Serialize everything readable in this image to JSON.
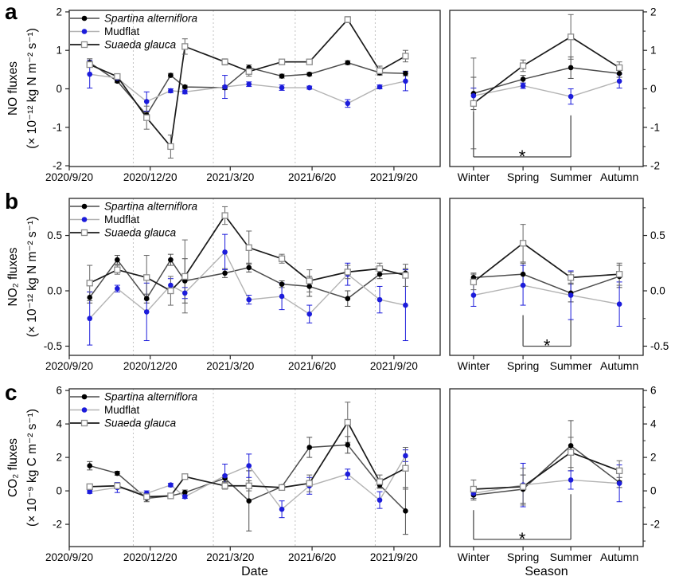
{
  "panel_letters": [
    "a",
    "b",
    "c"
  ],
  "x_axis_label": "Date",
  "season_axis_label": "Season",
  "legend_names": [
    "Spartina alterniflora",
    "Mudflat",
    "Suaeda glauca"
  ],
  "colors": {
    "spartina_line": "#4d4d4d",
    "spartina_marker": "#000000",
    "mudflat_line": "#b3b3b3",
    "mudflat_marker": "#1c1cdb",
    "suaeda_line": "#1a1a1a",
    "suaeda_marker_stroke": "#8c8c8c",
    "error_gray": "#666666",
    "season_divider": "#c4c4c4",
    "axis": "#262626",
    "bracket": "#4d4d4d"
  },
  "chart_data": [
    {
      "id": "a_timeseries",
      "type": "line",
      "ylabel": [
        "NO fluxes",
        "(× 10⁻¹² kg N m⁻² s⁻¹)"
      ],
      "ylim": [
        -2.02,
        2.04
      ],
      "y_ticks": [
        2,
        1,
        0,
        -1,
        -2
      ],
      "y_tick_labels": [
        "2",
        "1",
        "0",
        "-1",
        "-2"
      ],
      "y_minor_step": 0.5,
      "x_tick_labels": [
        "2020/9/20",
        "2020/12/20",
        "2021/3/20",
        "2021/6/20",
        "2021/9/20"
      ],
      "x_tick_days": [
        0,
        91,
        181,
        273,
        365
      ],
      "xlim_days": [
        0,
        417
      ],
      "season_divider_days": [
        72,
        162,
        254,
        344
      ],
      "x_dates": [
        "2020/10/13",
        "2020/11/13",
        "2020/12/16",
        "2021/1/12",
        "2021/1/28",
        "2021/3/14",
        "2021/4/10",
        "2021/5/17",
        "2021/6/17",
        "2021/7/30",
        "2021/9/4",
        "2021/10/3"
      ],
      "x_days": [
        23,
        54,
        87,
        114,
        130,
        175,
        202,
        239,
        270,
        313,
        349,
        378
      ],
      "show_legend": true,
      "series": [
        {
          "key": "spartina",
          "name": "Spartina alterniflora",
          "values": [
            0.68,
            0.2,
            -0.68,
            0.35,
            0.05,
            0.03,
            0.55,
            0.33,
            0.38,
            0.68,
            0.42,
            0.4
          ],
          "errors": [
            0.1,
            0.04,
            0.08,
            0.05,
            0.04,
            0.05,
            0.07,
            0.05,
            0.04,
            0.05,
            0.05,
            0.06
          ]
        },
        {
          "key": "mudflat",
          "name": "Mudflat",
          "values": [
            0.38,
            0.28,
            -0.33,
            -0.05,
            -0.08,
            0.05,
            0.12,
            0.03,
            0.03,
            -0.38,
            0.05,
            0.2
          ],
          "errors": [
            0.36,
            0.05,
            0.25,
            0.05,
            0.05,
            0.3,
            0.06,
            0.07,
            0.04,
            0.1,
            0.05,
            0.25
          ]
        },
        {
          "key": "suaeda",
          "name": "Suaeda glauca",
          "values": [
            0.63,
            0.32,
            -0.75,
            -1.5,
            1.1,
            0.7,
            0.45,
            0.7,
            0.7,
            1.8,
            0.47,
            0.85
          ],
          "errors": [
            0.05,
            0.06,
            0.3,
            0.3,
            0.2,
            0.08,
            0.12,
            0.05,
            0.05,
            0.08,
            0.12,
            0.15
          ]
        }
      ]
    },
    {
      "id": "a_seasonal",
      "type": "line",
      "categories": [
        "Winter",
        "Spring",
        "Summer",
        "Autumn"
      ],
      "ylim": [
        -2.02,
        2.04
      ],
      "y_ticks": [
        2,
        1,
        0,
        -1,
        -2
      ],
      "y_tick_labels": [
        "2",
        "1",
        "0",
        "-1",
        "-2"
      ],
      "y_minor_step": 0.5,
      "series": [
        {
          "key": "spartina",
          "name": "Spartina alterniflora",
          "values": [
            -0.12,
            0.25,
            0.55,
            0.4
          ],
          "errors": [
            0.42,
            0.1,
            0.28,
            0.1
          ]
        },
        {
          "key": "mudflat",
          "name": "Mudflat",
          "values": [
            -0.18,
            0.08,
            -0.2,
            0.2
          ],
          "errors": [
            0.2,
            0.07,
            0.2,
            0.18
          ]
        },
        {
          "key": "suaeda",
          "name": "Suaeda glauca",
          "values": [
            -0.38,
            0.6,
            1.35,
            0.55
          ],
          "errors": [
            1.18,
            0.15,
            0.58,
            0.15
          ]
        }
      ],
      "significance": {
        "from": 0,
        "to": 2,
        "bar": -1.77,
        "from_start": -0.59,
        "to_start": -0.69,
        "label": "*"
      }
    },
    {
      "id": "b_timeseries",
      "type": "line",
      "ylabel": [
        "NO₂ fluxes",
        "(× 10⁻¹² kg N m⁻² s⁻¹)"
      ],
      "ylim": [
        -0.583,
        0.835
      ],
      "y_ticks": [
        0.5,
        0.0,
        -0.5
      ],
      "y_tick_labels": [
        "0.5",
        "0.0",
        "-0.5"
      ],
      "y_minor_step": 0.25,
      "x_tick_labels": [
        "2020/9/20",
        "2020/12/20",
        "2021/3/20",
        "2021/6/20",
        "2021/9/20"
      ],
      "x_tick_days": [
        0,
        91,
        181,
        273,
        365
      ],
      "xlim_days": [
        0,
        417
      ],
      "season_divider_days": [
        72,
        162,
        254,
        344
      ],
      "x_dates": [
        "2020/10/13",
        "2020/11/13",
        "2020/12/16",
        "2021/1/12",
        "2021/1/28",
        "2021/3/14",
        "2021/4/10",
        "2021/5/17",
        "2021/6/17",
        "2021/7/30",
        "2021/9/4",
        "2021/10/3"
      ],
      "x_days": [
        23,
        54,
        87,
        114,
        130,
        175,
        202,
        239,
        270,
        313,
        349,
        378
      ],
      "show_legend": true,
      "series": [
        {
          "key": "spartina",
          "name": "Spartina alterniflora",
          "values": [
            -0.06,
            0.28,
            -0.07,
            0.28,
            0.09,
            0.16,
            0.21,
            0.06,
            0.04,
            -0.07,
            0.15,
            0.16
          ],
          "errors": [
            0.05,
            0.04,
            0.04,
            0.05,
            0.2,
            0.04,
            0.04,
            0.03,
            0.09,
            0.07,
            0.04,
            0.04
          ]
        },
        {
          "key": "mudflat",
          "name": "Mudflat",
          "values": [
            -0.25,
            0.02,
            -0.19,
            0.05,
            -0.02,
            0.35,
            -0.08,
            -0.05,
            -0.21,
            0.15,
            -0.08,
            -0.13
          ],
          "errors": [
            0.24,
            0.03,
            0.26,
            0.06,
            0.05,
            0.16,
            0.04,
            0.12,
            0.08,
            0.1,
            0.12,
            0.32
          ]
        },
        {
          "key": "suaeda",
          "name": "Suaeda glauca",
          "values": [
            0.07,
            0.19,
            0.12,
            0.0,
            0.13,
            0.68,
            0.39,
            0.29,
            0.09,
            0.17,
            0.2,
            0.14
          ],
          "errors": [
            0.16,
            0.04,
            0.2,
            0.13,
            0.33,
            0.08,
            0.15,
            0.04,
            0.1,
            0.06,
            0.05,
            0.1
          ]
        }
      ]
    },
    {
      "id": "b_seasonal",
      "type": "line",
      "categories": [
        "Winter",
        "Spring",
        "Summer",
        "Autumn"
      ],
      "ylim": [
        -0.583,
        0.835
      ],
      "y_ticks": [
        0.5,
        0.0,
        -0.5
      ],
      "y_tick_labels": [
        "0.5",
        "0.0",
        "-0.5"
      ],
      "y_minor_step": 0.25,
      "series": [
        {
          "key": "spartina",
          "name": "Spartina alterniflora",
          "values": [
            0.12,
            0.15,
            -0.02,
            0.13
          ],
          "errors": [
            0.04,
            0.1,
            0.08,
            0.1
          ]
        },
        {
          "key": "mudflat",
          "name": "Mudflat",
          "values": [
            -0.04,
            0.05,
            -0.04,
            -0.12
          ],
          "errors": [
            0.1,
            0.18,
            0.22,
            0.2
          ]
        },
        {
          "key": "suaeda",
          "name": "Suaeda glauca",
          "values": [
            0.08,
            0.43,
            0.12,
            0.15
          ],
          "errors": [
            0.07,
            0.17,
            0.05,
            0.1
          ]
        }
      ],
      "significance": {
        "from": 1,
        "to": 2,
        "bar": -0.5,
        "from_start": -0.22,
        "to_start": -0.26,
        "label": "*"
      }
    },
    {
      "id": "c_timeseries",
      "type": "line",
      "ylabel": [
        "CO₂ fluxes",
        "(× 10⁻⁹ kg C m⁻² s⁻¹)"
      ],
      "ylim": [
        -3.33,
        6.1
      ],
      "y_ticks": [
        6,
        4,
        2,
        0,
        -2
      ],
      "y_tick_labels": [
        "6",
        "4",
        "2",
        "0",
        "-2"
      ],
      "y_minor_step": 1,
      "x_tick_labels": [
        "2020/9/20",
        "2020/12/20",
        "2021/3/20",
        "2021/6/20",
        "2021/9/20"
      ],
      "x_tick_days": [
        0,
        91,
        181,
        273,
        365
      ],
      "xlim_days": [
        0,
        417
      ],
      "season_divider_days": [
        72,
        162,
        254,
        344
      ],
      "x_dates": [
        "2020/10/13",
        "2020/11/13",
        "2020/12/16",
        "2021/1/12",
        "2021/1/28",
        "2021/3/14",
        "2021/4/10",
        "2021/5/17",
        "2021/6/17",
        "2021/7/30",
        "2021/9/4",
        "2021/10/3"
      ],
      "x_days": [
        23,
        54,
        87,
        114,
        130,
        175,
        202,
        239,
        270,
        313,
        349,
        378
      ],
      "show_legend": true,
      "series": [
        {
          "key": "spartina",
          "name": "Spartina alterniflora",
          "values": [
            1.5,
            1.05,
            -0.45,
            -0.3,
            -0.1,
            0.75,
            -0.6,
            0.25,
            2.6,
            2.75,
            0.35,
            -1.2
          ],
          "errors": [
            0.25,
            0.12,
            0.2,
            0.1,
            0.15,
            0.2,
            1.8,
            0.1,
            0.6,
            0.5,
            0.15,
            1.4
          ]
        },
        {
          "key": "mudflat",
          "name": "Mudflat",
          "values": [
            -0.05,
            0.2,
            -0.15,
            0.35,
            -0.35,
            0.9,
            1.5,
            -1.1,
            0.3,
            1.0,
            -0.55,
            2.1
          ],
          "errors": [
            0.1,
            0.3,
            0.15,
            0.1,
            0.1,
            0.7,
            0.7,
            0.5,
            0.5,
            0.3,
            0.5,
            0.35
          ]
        },
        {
          "key": "suaeda",
          "name": "Suaeda glauca",
          "values": [
            0.25,
            0.3,
            -0.35,
            -0.3,
            0.85,
            0.3,
            0.3,
            0.2,
            0.45,
            4.1,
            0.55,
            1.35
          ],
          "errors": [
            0.1,
            0.1,
            0.15,
            0.1,
            0.15,
            0.2,
            0.3,
            0.1,
            0.5,
            1.2,
            0.4,
            1.25
          ]
        }
      ]
    },
    {
      "id": "c_seasonal",
      "type": "line",
      "categories": [
        "Winter",
        "Spring",
        "Summer",
        "Autumn"
      ],
      "ylim": [
        -3.33,
        6.1
      ],
      "y_ticks": [
        6,
        4,
        2,
        0,
        -2
      ],
      "y_tick_labels": [
        "6",
        "4",
        "2",
        "0",
        "-2"
      ],
      "y_minor_step": 1,
      "series": [
        {
          "key": "spartina",
          "name": "Spartina alterniflora",
          "values": [
            -0.25,
            0.1,
            2.7,
            0.5
          ],
          "errors": [
            0.3,
            0.85,
            1.5,
            0.3
          ]
        },
        {
          "key": "mudflat",
          "name": "Mudflat",
          "values": [
            -0.15,
            0.35,
            0.65,
            0.45
          ],
          "errors": [
            0.3,
            1.3,
            0.55,
            1.1
          ]
        },
        {
          "key": "suaeda",
          "name": "Suaeda glauca",
          "values": [
            0.1,
            0.25,
            2.3,
            1.2
          ],
          "errors": [
            0.55,
            1.1,
            0.9,
            0.6
          ]
        }
      ],
      "significance": {
        "from": 0,
        "to": 2,
        "bar": -2.9,
        "from_start": -1.15,
        "to_start": -0.2,
        "label": "*"
      }
    }
  ]
}
